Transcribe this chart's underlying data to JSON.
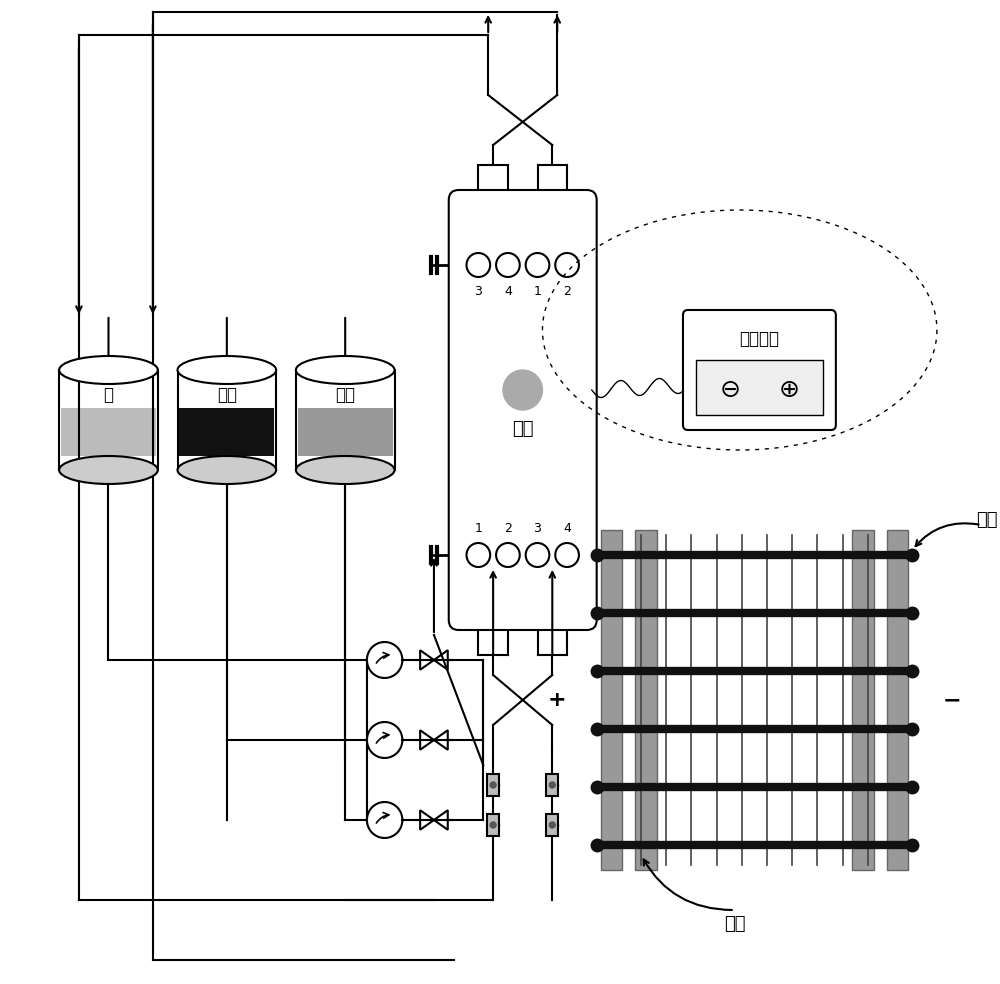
{
  "bg_color": "#ffffff",
  "lc": "#000000",
  "tank_labels": [
    "酸",
    "料液",
    "极液"
  ],
  "membrane_label": "阴极",
  "power_label": "直流电源",
  "jiye_top": "极液",
  "jiye_bot": "极液",
  "port_labels_top": [
    "3",
    "4",
    "1",
    "2"
  ],
  "port_labels_bot": [
    "1",
    "2",
    "3",
    "4"
  ]
}
